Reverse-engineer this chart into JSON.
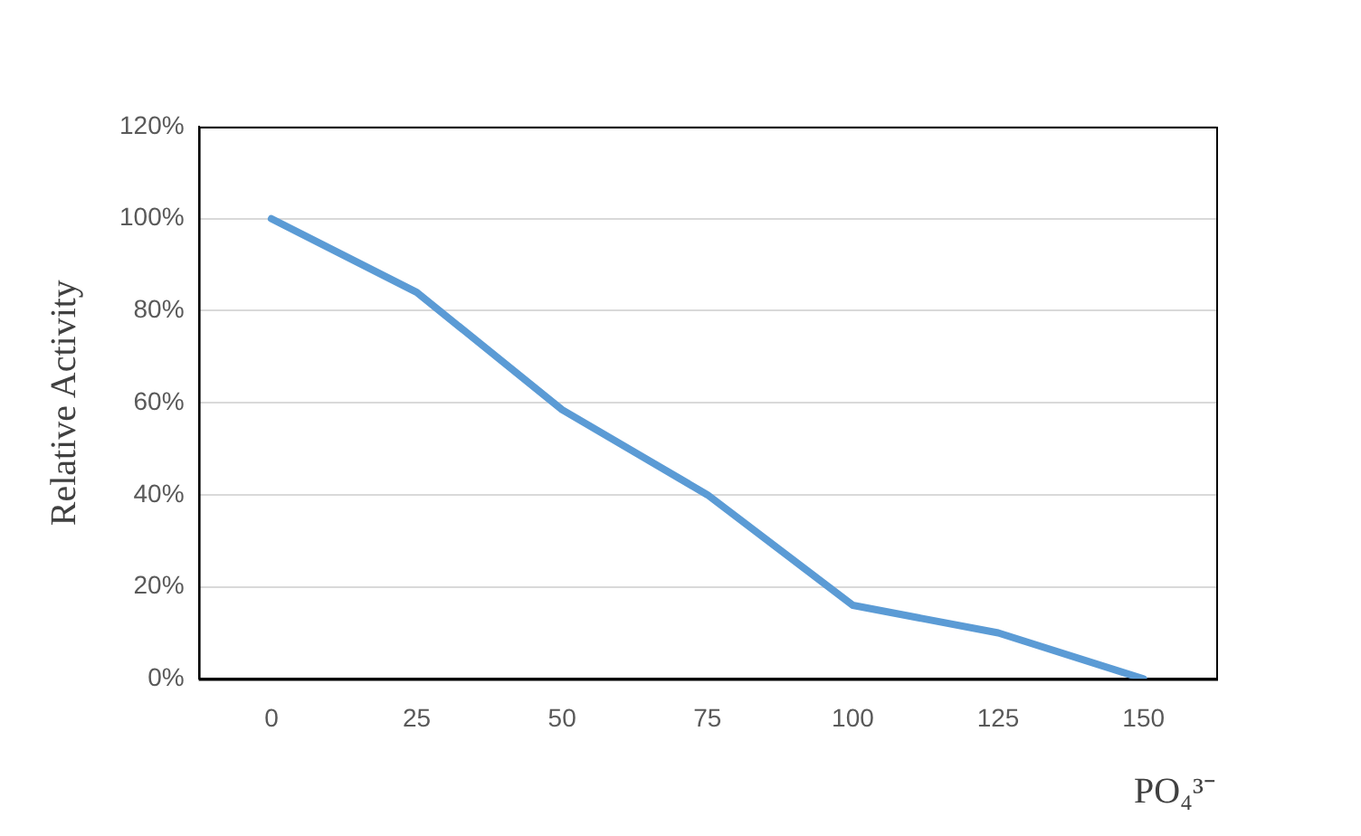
{
  "chart_data": {
    "type": "line",
    "xlabel": "PO₄³⁻",
    "ylabel": "Relative Activity",
    "categories": [
      "0",
      "25",
      "50",
      "75",
      "100",
      "125",
      "150"
    ],
    "series": [
      {
        "color": "#5b9bd5",
        "values": [
          100,
          84,
          58.5,
          40,
          16,
          10,
          0
        ]
      }
    ],
    "ylim": [
      0,
      120
    ],
    "yticks": [
      {
        "value": 0,
        "label": "0%"
      },
      {
        "value": 20,
        "label": "20%"
      },
      {
        "value": 40,
        "label": "40%"
      },
      {
        "value": 60,
        "label": "60%"
      },
      {
        "value": 80,
        "label": "80%"
      },
      {
        "value": 100,
        "label": "100%"
      },
      {
        "value": 120,
        "label": "120%"
      }
    ],
    "grid": "y",
    "legend": false,
    "marker": "none",
    "line_style": "solid"
  }
}
